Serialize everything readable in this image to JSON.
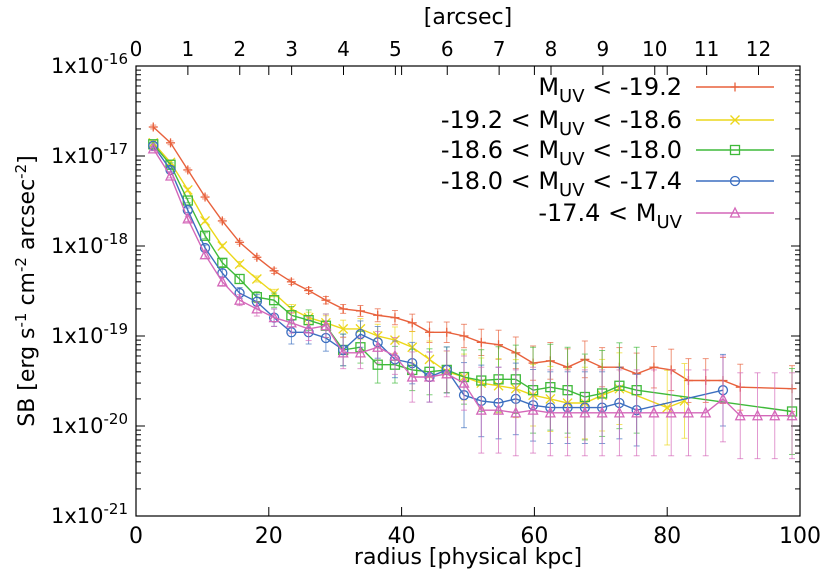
{
  "chart_data": {
    "type": "line",
    "xlabel": "radius [physical kpc]",
    "x2label": "[arcsec]",
    "ylabel": "SB [erg s^-1 cm^-2 arcsec^-2]",
    "ylabel_parts": {
      "main": "SB [erg s",
      "e1": "-1",
      "mid1": " cm",
      "e2": "-2",
      "mid2": " arcsec",
      "e3": "-2",
      "end": "]"
    },
    "xlim": [
      0,
      100
    ],
    "x2lim": [
      0,
      12.8
    ],
    "ylim": [
      1e-21,
      1e-16
    ],
    "yscale": "log",
    "xticks": [
      "0",
      "20",
      "40",
      "60",
      "80",
      "100"
    ],
    "x2ticks": [
      "0",
      "1",
      "2",
      "3",
      "4",
      "5",
      "6",
      "7",
      "8",
      "9",
      "10",
      "11",
      "12"
    ],
    "yticks": [
      {
        "base": "1x10",
        "exp": "-21"
      },
      {
        "base": "1x10",
        "exp": "-20"
      },
      {
        "base": "1x10",
        "exp": "-19"
      },
      {
        "base": "1x10",
        "exp": "-18"
      },
      {
        "base": "1x10",
        "exp": "-17"
      },
      {
        "base": "1x10",
        "exp": "-16"
      }
    ],
    "legend_position": "top-right",
    "series": [
      {
        "name": "M_UV < -19.2",
        "label_parts": {
          "pre": "M",
          "sub": "UV",
          "post": " < -19.2"
        },
        "color": "#e8613c",
        "marker": "plus",
        "x": [
          2.6,
          5.2,
          7.8,
          10.4,
          13.0,
          15.6,
          18.2,
          20.8,
          23.4,
          26.0,
          28.6,
          31.2,
          33.8,
          36.4,
          39.0,
          41.6,
          44.2,
          46.8,
          49.4,
          52.0,
          54.6,
          57.2,
          59.8,
          62.4,
          65.0,
          67.6,
          70.2,
          72.8,
          75.4,
          78.0,
          80.6,
          83.2,
          85.8,
          88.4,
          91.0,
          98.8
        ],
        "y": [
          2.1e-17,
          1.4e-17,
          7e-18,
          3.5e-18,
          1.9e-18,
          1.1e-18,
          7.5e-19,
          5.3e-19,
          4e-19,
          3.2e-19,
          2.5e-19,
          2e-19,
          1.9e-19,
          1.7e-19,
          1.6e-19,
          1.4e-19,
          1.1e-19,
          1.1e-19,
          1e-19,
          8.5e-20,
          8e-20,
          6.5e-20,
          5e-20,
          5.3e-20,
          4.5e-20,
          5.5e-20,
          4.5e-20,
          4.5e-20,
          3.8e-20,
          4.5e-20,
          4.2e-20,
          3.2e-20,
          3.2e-20,
          3.2e-20,
          2.7e-20,
          2.6e-20
        ],
        "err_factor": [
          1.05,
          1.05,
          1.05,
          1.05,
          1.05,
          1.05,
          1.05,
          1.07,
          1.07,
          1.08,
          1.1,
          1.12,
          1.15,
          1.18,
          1.2,
          1.25,
          1.3,
          1.3,
          1.35,
          1.4,
          1.45,
          1.5,
          1.55,
          1.6,
          1.6,
          1.6,
          1.65,
          1.65,
          1.7,
          1.7,
          1.7,
          1.75,
          1.75,
          1.8,
          1.8,
          1.8
        ]
      },
      {
        "name": "-19.2 < M_UV < -18.6",
        "label_parts": {
          "pre": "-19.2 < M",
          "sub": "UV",
          "post": " < -18.6"
        },
        "color": "#ecd71a",
        "marker": "cross",
        "x": [
          2.6,
          5.2,
          7.8,
          10.4,
          13.0,
          15.6,
          18.2,
          20.8,
          23.4,
          26.0,
          28.6,
          31.2,
          33.8,
          36.4,
          39.0,
          41.6,
          44.2,
          46.8,
          49.4,
          52.0,
          54.6,
          57.2,
          59.8,
          62.4,
          65.0,
          67.6,
          70.2,
          72.8,
          80.0,
          82.6
        ],
        "y": [
          1.4e-17,
          8.5e-18,
          4.2e-18,
          1.9e-18,
          1e-18,
          6.3e-19,
          4.3e-19,
          3e-19,
          2e-19,
          1.6e-19,
          1.4e-19,
          1.2e-19,
          1.2e-19,
          1e-19,
          9e-20,
          7.5e-20,
          5.5e-20,
          4e-20,
          3.5e-20,
          3e-20,
          2.8e-20,
          2.6e-20,
          2.2e-20,
          2e-20,
          1.8e-20,
          1.8e-20,
          2.2e-20,
          2.6e-20,
          1.6e-20,
          1.9e-20
        ],
        "err_factor": [
          1.05,
          1.05,
          1.05,
          1.05,
          1.05,
          1.07,
          1.08,
          1.1,
          1.12,
          1.15,
          1.2,
          1.25,
          1.3,
          1.35,
          1.4,
          1.5,
          1.6,
          1.7,
          1.8,
          1.9,
          2.0,
          2.1,
          2.2,
          2.3,
          2.4,
          2.5,
          2.5,
          2.5,
          2.6,
          2.6
        ]
      },
      {
        "name": "-18.6 < M_UV < -18.0",
        "label_parts": {
          "pre": "-18.6 < M",
          "sub": "UV",
          "post": " < -18.0"
        },
        "color": "#3fba3a",
        "marker": "square",
        "x": [
          2.6,
          5.2,
          7.8,
          10.4,
          13.0,
          15.6,
          18.2,
          20.8,
          23.4,
          26.0,
          28.6,
          31.2,
          33.8,
          36.4,
          39.0,
          41.6,
          44.2,
          46.8,
          49.4,
          52.0,
          54.6,
          57.2,
          59.8,
          62.4,
          65.0,
          67.6,
          70.2,
          72.8,
          75.4,
          98.8
        ],
        "y": [
          1.35e-17,
          8e-18,
          3.2e-18,
          1.3e-18,
          6.5e-19,
          4.3e-19,
          2.7e-19,
          2.5e-19,
          1.7e-19,
          1.5e-19,
          1.3e-19,
          7e-20,
          7.5e-20,
          4.8e-20,
          4.8e-20,
          4.2e-20,
          4e-20,
          4.2e-20,
          3.5e-20,
          3.2e-20,
          3.3e-20,
          3.3e-20,
          2.5e-20,
          2.7e-20,
          2.5e-20,
          2.1e-20,
          2.3e-20,
          2.8e-20,
          2.5e-20,
          1.45e-20
        ],
        "err_factor": [
          1.05,
          1.05,
          1.06,
          1.08,
          1.1,
          1.12,
          1.15,
          1.2,
          1.25,
          1.3,
          1.35,
          1.5,
          1.5,
          1.6,
          1.6,
          1.7,
          1.8,
          1.8,
          2.0,
          2.2,
          2.3,
          2.4,
          3.0,
          3.0,
          3.0,
          3.0,
          3.0,
          3.0,
          3.0,
          3.0
        ]
      },
      {
        "name": "-18.0 < M_UV < -17.4",
        "label_parts": {
          "pre": "-18.0 < M",
          "sub": "UV",
          "post": " < -17.4"
        },
        "color": "#3c6fc0",
        "marker": "circle",
        "x": [
          2.6,
          5.2,
          7.8,
          10.4,
          13.0,
          15.6,
          18.2,
          20.8,
          23.4,
          26.0,
          28.6,
          31.2,
          33.8,
          36.4,
          39.0,
          41.6,
          44.2,
          46.8,
          49.4,
          52.0,
          54.6,
          57.2,
          59.8,
          62.4,
          65.0,
          67.6,
          70.2,
          72.8,
          75.4,
          88.4
        ],
        "y": [
          1.3e-17,
          7e-18,
          2.5e-18,
          9.5e-19,
          5e-19,
          3e-19,
          2.4e-19,
          1.6e-19,
          1.1e-19,
          1.1e-19,
          9.5e-20,
          7e-20,
          1.05e-19,
          8.5e-20,
          5.5e-20,
          5e-20,
          3.5e-20,
          4.2e-20,
          2.2e-20,
          1.9e-20,
          1.8e-20,
          2e-20,
          1.7e-20,
          1.6e-20,
          1.6e-20,
          1.6e-20,
          1.6e-20,
          1.8e-20,
          1.5e-20,
          2.5e-20
        ],
        "err_factor": [
          1.05,
          1.05,
          1.06,
          1.08,
          1.1,
          1.15,
          1.2,
          1.25,
          1.35,
          1.35,
          1.4,
          1.5,
          1.4,
          1.5,
          1.6,
          1.7,
          1.9,
          1.8,
          2.3,
          2.5,
          2.5,
          2.5,
          2.5,
          2.5,
          2.5,
          2.5,
          2.5,
          2.5,
          2.5,
          2.5
        ]
      },
      {
        "name": "-17.4 < M_UV",
        "label_parts": {
          "pre": "-17.4 < M",
          "sub": "UV",
          "post": ""
        },
        "color": "#d467b9",
        "marker": "triangle",
        "x": [
          2.6,
          5.2,
          7.8,
          10.4,
          13.0,
          15.6,
          18.2,
          20.8,
          23.4,
          26.0,
          28.6,
          31.2,
          33.8,
          36.4,
          39.0,
          41.6,
          44.2,
          46.8,
          49.4,
          52.0,
          54.6,
          57.2,
          59.8,
          62.4,
          65.0,
          67.6,
          70.2,
          72.8,
          75.4,
          78.0,
          80.6,
          83.2,
          85.8,
          88.4,
          91.0,
          93.6,
          96.2,
          98.8
        ],
        "y": [
          1.2e-17,
          6e-18,
          2e-18,
          8e-19,
          4e-19,
          2.5e-19,
          2e-19,
          1.6e-19,
          1.4e-19,
          1.2e-19,
          1.3e-19,
          6.5e-20,
          6.5e-20,
          7.5e-20,
          6e-20,
          3.5e-20,
          3.5e-20,
          3.8e-20,
          3e-20,
          1.5e-20,
          1.5e-20,
          1.4e-20,
          1.5e-20,
          1.4e-20,
          1.4e-20,
          1.4e-20,
          1.4e-20,
          1.4e-20,
          1.4e-20,
          1.4e-20,
          1.4e-20,
          1.4e-20,
          1.4e-20,
          2e-20,
          1.3e-20,
          1.3e-20,
          1.3e-20,
          1.3e-20
        ],
        "err_factor": [
          1.05,
          1.05,
          1.07,
          1.1,
          1.12,
          1.15,
          1.2,
          1.25,
          1.3,
          1.35,
          1.35,
          1.5,
          1.5,
          1.5,
          1.6,
          1.9,
          1.9,
          1.8,
          2.0,
          3.0,
          3.0,
          3.0,
          3.0,
          3.0,
          3.0,
          3.0,
          3.0,
          3.0,
          3.0,
          3.0,
          3.0,
          3.0,
          3.0,
          3.0,
          3.0,
          3.0,
          3.0,
          3.0
        ]
      }
    ]
  }
}
